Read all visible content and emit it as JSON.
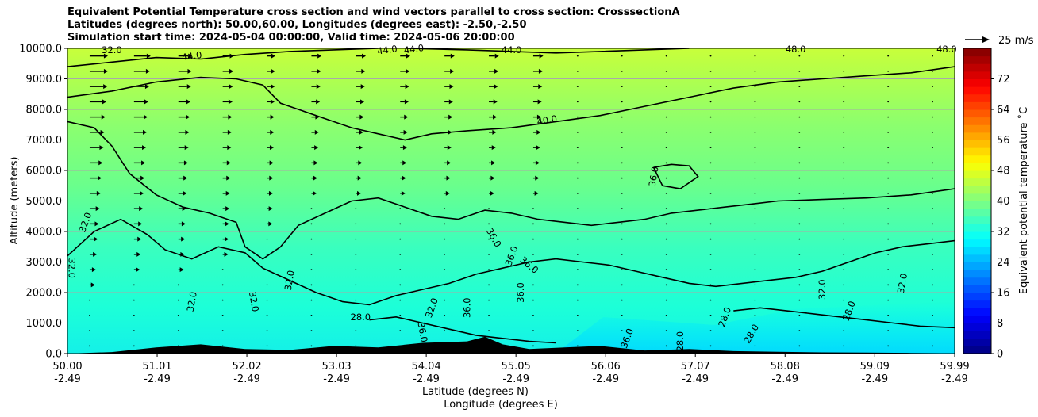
{
  "chart_data": {
    "type": "heatmap",
    "title_lines": [
      "Equivalent Potential Temperature cross section and wind vectors parallel to cross section: CrosssectionA",
      "Latitudes (degrees north): 50.00,60.00, Longitudes (degrees east): -2.50,-2.50",
      "Simulation start time: 2024-05-04 00:00:00, Valid time: 2024-05-06 20:00:00"
    ],
    "ylabel": "Altitude (meters)",
    "xlabel_lines": [
      "Latitude (degrees N)",
      "Longitude (degrees E)"
    ],
    "ylim": [
      0,
      10000
    ],
    "y_ticks": [
      0,
      1000,
      2000,
      3000,
      4000,
      5000,
      6000,
      7000,
      8000,
      9000,
      10000
    ],
    "y_tick_labels": [
      "0.0",
      "1000.0",
      "2000.0",
      "3000.0",
      "4000.0",
      "5000.0",
      "6000.0",
      "7000.0",
      "8000.0",
      "9000.0",
      "10000.0"
    ],
    "x_tick_lat": [
      "50.00",
      "51.01",
      "52.02",
      "53.03",
      "54.04",
      "55.05",
      "56.06",
      "57.07",
      "58.08",
      "59.09",
      "59.99"
    ],
    "x_tick_lon": [
      "-2.49",
      "-2.49",
      "-2.49",
      "-2.49",
      "-2.49",
      "-2.49",
      "-2.49",
      "-2.49",
      "-2.49",
      "-2.49",
      "-2.49"
    ],
    "x_tick_values": [
      50.0,
      51.01,
      52.02,
      53.03,
      54.04,
      55.05,
      56.06,
      57.07,
      58.08,
      59.09,
      59.99
    ],
    "xlim": [
      50.0,
      59.99
    ],
    "grid": "horizontal",
    "colorbar": {
      "label": "Equivalent potential temperature $^\\circ$C",
      "label_display": "Equivalent potential temperature ˚C",
      "range": [
        0,
        80
      ],
      "ticks": [
        0,
        8,
        16,
        24,
        32,
        40,
        48,
        56,
        64,
        72
      ],
      "tick_labels": [
        "0",
        "8",
        "16",
        "24",
        "32",
        "40",
        "48",
        "56",
        "64",
        "72"
      ],
      "colormap": "jet"
    },
    "wind_key_label": "25 m/s",
    "contour_labels": [
      "32.0",
      "44.0",
      "44.0",
      "44.0",
      "44.0",
      "48.0",
      "48.0",
      "40.0",
      "36.0",
      "32.0",
      "32.0",
      "32.0",
      "32.0",
      "32.0",
      "36.0",
      "36.0",
      "36.0",
      "36.0",
      "36.0",
      "28.0",
      "32.0",
      "36.0",
      "36.0",
      "28.0",
      "28.0",
      "28.0",
      "32.0",
      "32.0",
      "28.0"
    ],
    "description_series": [
      {
        "name": "",
        "note": "theta-e field: ~46 C near 10000 m, ~42 C at 7000-9000 m, ~36-38 C at 4000-6000 m, ~32 C at 1000-3000 m, ~26-28 C near surface north of 57.5N"
      }
    ],
    "contours": [
      {
        "level": 44,
        "points": [
          [
            50.0,
            9400
          ],
          [
            50.5,
            9550
          ],
          [
            51.0,
            9700
          ],
          [
            51.5,
            9650
          ],
          [
            52.0,
            9800
          ],
          [
            52.5,
            9900
          ],
          [
            53.0,
            9950
          ],
          [
            53.5,
            10000
          ]
        ]
      },
      {
        "level": 44,
        "points": [
          [
            53.8,
            10000
          ],
          [
            54.5,
            9950
          ],
          [
            55.0,
            9900
          ],
          [
            55.5,
            9850
          ],
          [
            56.0,
            9900
          ],
          [
            56.5,
            9950
          ],
          [
            57.0,
            10000
          ]
        ]
      },
      {
        "level": 40,
        "points": [
          [
            50.0,
            8400
          ],
          [
            50.5,
            8600
          ],
          [
            51.0,
            8900
          ],
          [
            51.5,
            9050
          ],
          [
            51.9,
            9000
          ],
          [
            52.2,
            8800
          ],
          [
            52.4,
            8200
          ],
          [
            52.6,
            8000
          ],
          [
            52.9,
            7700
          ],
          [
            53.2,
            7400
          ],
          [
            53.5,
            7200
          ],
          [
            53.8,
            7000
          ],
          [
            54.1,
            7200
          ],
          [
            54.5,
            7300
          ],
          [
            55.0,
            7400
          ],
          [
            55.5,
            7600
          ],
          [
            56.0,
            7800
          ],
          [
            56.5,
            8100
          ],
          [
            57.0,
            8400
          ],
          [
            57.5,
            8700
          ],
          [
            58.0,
            8900
          ],
          [
            58.5,
            9000
          ],
          [
            59.0,
            9100
          ],
          [
            59.5,
            9200
          ],
          [
            59.99,
            9400
          ]
        ]
      },
      {
        "level": 36,
        "points": [
          [
            50.0,
            7600
          ],
          [
            50.3,
            7400
          ],
          [
            50.5,
            6800
          ],
          [
            50.7,
            5900
          ],
          [
            51.0,
            5200
          ],
          [
            51.3,
            4800
          ],
          [
            51.6,
            4600
          ],
          [
            51.9,
            4300
          ],
          [
            52.0,
            3500
          ],
          [
            52.2,
            3100
          ],
          [
            52.4,
            3500
          ],
          [
            52.6,
            4200
          ],
          [
            52.9,
            4600
          ],
          [
            53.2,
            5000
          ],
          [
            53.5,
            5100
          ],
          [
            53.8,
            4800
          ],
          [
            54.1,
            4500
          ],
          [
            54.4,
            4400
          ],
          [
            54.7,
            4700
          ],
          [
            55.0,
            4600
          ],
          [
            55.3,
            4400
          ],
          [
            55.6,
            4300
          ],
          [
            55.9,
            4200
          ],
          [
            56.2,
            4300
          ],
          [
            56.5,
            4400
          ],
          [
            56.8,
            4600
          ],
          [
            57.1,
            4700
          ],
          [
            57.4,
            4800
          ],
          [
            57.7,
            4900
          ],
          [
            58.0,
            5000
          ],
          [
            58.5,
            5050
          ],
          [
            59.0,
            5100
          ],
          [
            59.5,
            5200
          ],
          [
            59.99,
            5400
          ]
        ]
      },
      {
        "level": 36,
        "points": [
          [
            56.6,
            6100
          ],
          [
            56.8,
            6200
          ],
          [
            57.0,
            6150
          ],
          [
            57.1,
            5800
          ],
          [
            56.9,
            5400
          ],
          [
            56.7,
            5500
          ],
          [
            56.6,
            6100
          ]
        ]
      },
      {
        "level": 32,
        "points": [
          [
            50.0,
            3200
          ],
          [
            50.3,
            4000
          ],
          [
            50.6,
            4400
          ],
          [
            50.9,
            3900
          ],
          [
            51.1,
            3400
          ],
          [
            51.4,
            3100
          ],
          [
            51.7,
            3500
          ],
          [
            52.0,
            3300
          ],
          [
            52.2,
            2800
          ],
          [
            52.5,
            2400
          ],
          [
            52.8,
            2000
          ],
          [
            53.1,
            1700
          ],
          [
            53.4,
            1600
          ],
          [
            53.7,
            1900
          ],
          [
            54.0,
            2100
          ],
          [
            54.3,
            2300
          ],
          [
            54.6,
            2600
          ],
          [
            54.9,
            2800
          ],
          [
            55.2,
            3000
          ],
          [
            55.5,
            3100
          ],
          [
            55.8,
            3000
          ],
          [
            56.1,
            2900
          ],
          [
            56.4,
            2700
          ],
          [
            56.7,
            2500
          ],
          [
            57.0,
            2300
          ],
          [
            57.3,
            2200
          ],
          [
            57.6,
            2300
          ],
          [
            57.9,
            2400
          ],
          [
            58.2,
            2500
          ],
          [
            58.5,
            2700
          ],
          [
            58.8,
            3000
          ],
          [
            59.1,
            3300
          ],
          [
            59.4,
            3500
          ],
          [
            59.7,
            3600
          ],
          [
            59.99,
            3700
          ]
        ]
      },
      {
        "level": 28,
        "points": [
          [
            57.5,
            1400
          ],
          [
            57.8,
            1500
          ],
          [
            58.1,
            1400
          ],
          [
            58.4,
            1300
          ],
          [
            58.7,
            1200
          ],
          [
            59.0,
            1100
          ],
          [
            59.3,
            1000
          ],
          [
            59.6,
            900
          ],
          [
            59.99,
            850
          ]
        ]
      },
      {
        "level": 28,
        "points": [
          [
            53.4,
            1100
          ],
          [
            53.7,
            1200
          ],
          [
            54.0,
            1000
          ],
          [
            54.3,
            800
          ],
          [
            54.6,
            600
          ],
          [
            54.9,
            500
          ],
          [
            55.2,
            400
          ],
          [
            55.5,
            350
          ]
        ]
      }
    ],
    "terrain_points": [
      [
        50.0,
        0
      ],
      [
        50.5,
        50
      ],
      [
        51.0,
        200
      ],
      [
        51.5,
        300
      ],
      [
        52.0,
        150
      ],
      [
        52.5,
        120
      ],
      [
        53.0,
        250
      ],
      [
        53.5,
        200
      ],
      [
        54.0,
        350
      ],
      [
        54.5,
        400
      ],
      [
        54.7,
        550
      ],
      [
        54.9,
        300
      ],
      [
        55.2,
        150
      ],
      [
        55.6,
        200
      ],
      [
        56.0,
        250
      ],
      [
        56.5,
        100
      ],
      [
        57.0,
        150
      ],
      [
        57.5,
        80
      ],
      [
        58.0,
        60
      ],
      [
        58.5,
        40
      ],
      [
        59.0,
        30
      ],
      [
        59.5,
        20
      ],
      [
        59.99,
        10
      ]
    ]
  }
}
